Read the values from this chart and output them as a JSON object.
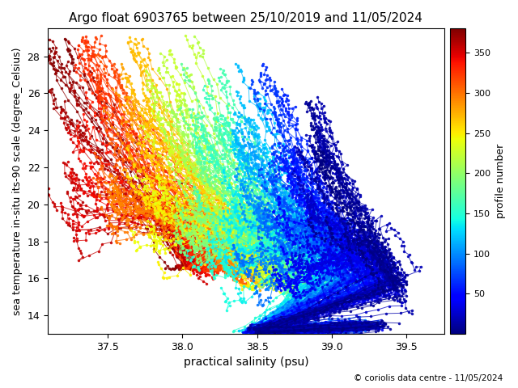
{
  "title": "Argo float 6903765 between 25/10/2019 and 11/05/2024",
  "xlabel": "practical salinity (psu)",
  "ylabel": "sea temperature in-situ its-90 scale (degree_Celsius)",
  "colorbar_label": "profile number",
  "xlim": [
    37.1,
    39.75
  ],
  "ylim": [
    13.0,
    29.5
  ],
  "xticks": [
    37.5,
    38.0,
    38.5,
    39.0,
    39.5
  ],
  "yticks": [
    14,
    16,
    18,
    20,
    22,
    24,
    26,
    28
  ],
  "n_profiles": 380,
  "vmin": 0,
  "vmax": 380,
  "footer": "© coriolis data centre - 11/05/2024",
  "cmap": "jet",
  "markersize": 2.5,
  "linewidth": 0.7,
  "title_fontsize": 11,
  "label_fontsize": 10,
  "ylabel_fontsize": 9
}
